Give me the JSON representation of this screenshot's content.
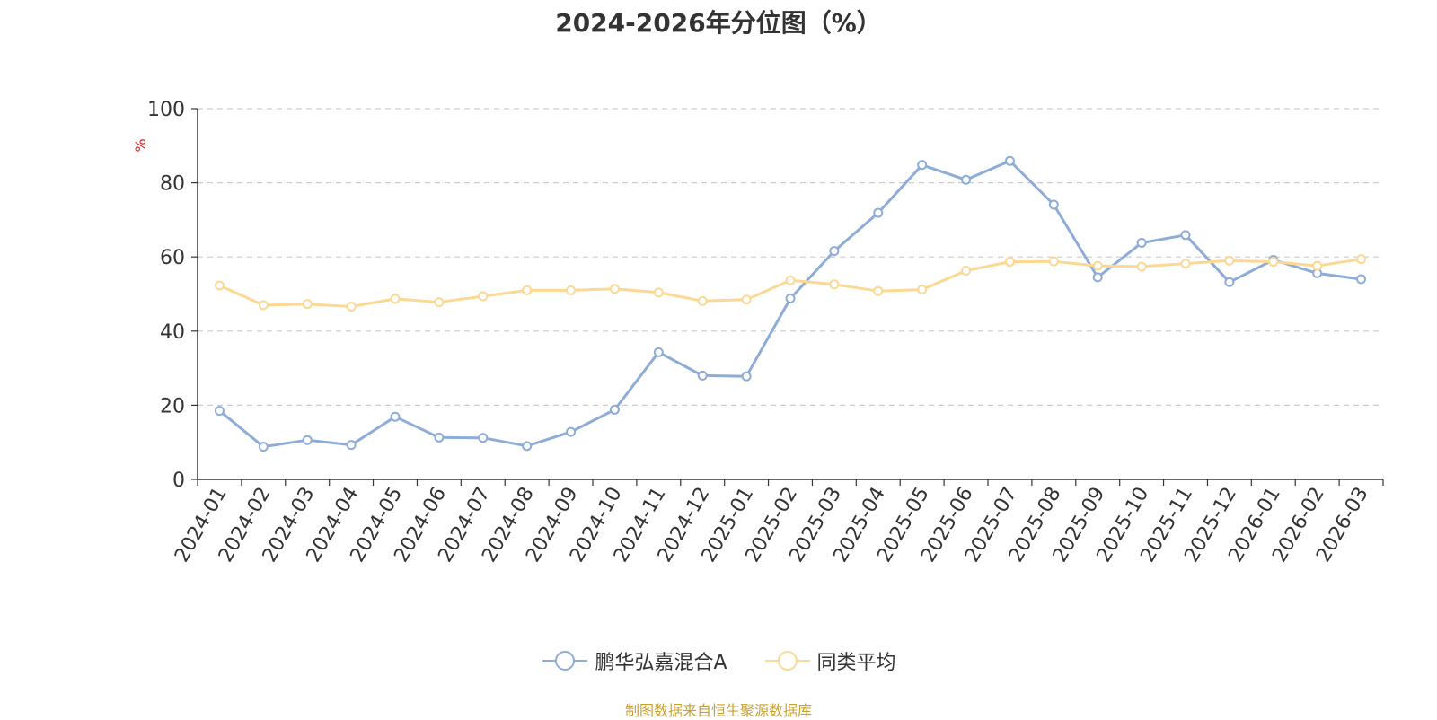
{
  "chart_data": {
    "type": "line",
    "title": "2024-2026年分位图（%）",
    "ylabel": "%",
    "ylim": [
      0,
      100
    ],
    "yticks": [
      0,
      20,
      40,
      60,
      80,
      100
    ],
    "grid": true,
    "legend_position": "bottom",
    "x": [
      "2024-01",
      "2024-02",
      "2024-03",
      "2024-04",
      "2024-05",
      "2024-06",
      "2024-07",
      "2024-08",
      "2024-09",
      "2024-10",
      "2024-11",
      "2024-12",
      "2025-01",
      "2025-02",
      "2025-03",
      "2025-04",
      "2025-05",
      "2025-06",
      "2025-07",
      "2025-08",
      "2025-09",
      "2025-10",
      "2025-11",
      "2025-12",
      "2026-01",
      "2026-02",
      "2026-03"
    ],
    "series": [
      {
        "name": "鹏华弘嘉混合A",
        "color": "#8eacd8",
        "values": [
          18.5,
          8.8,
          10.6,
          9.3,
          16.9,
          11.3,
          11.2,
          9.0,
          12.8,
          18.8,
          34.3,
          28.0,
          27.8,
          48.8,
          61.6,
          71.9,
          84.8,
          80.8,
          85.9,
          74.1,
          54.5,
          63.8,
          65.9,
          53.2,
          59.2,
          55.6,
          54.0
        ]
      },
      {
        "name": "同类平均",
        "color": "#fbd994",
        "values": [
          52.3,
          47.0,
          47.3,
          46.6,
          48.7,
          47.8,
          49.4,
          51.0,
          51.0,
          51.4,
          50.4,
          48.1,
          48.5,
          53.7,
          52.6,
          50.8,
          51.2,
          56.3,
          58.7,
          58.8,
          57.6,
          57.4,
          58.2,
          59.0,
          58.7,
          57.6,
          59.4
        ]
      }
    ]
  },
  "source": "制图数据来自恒生聚源数据库"
}
